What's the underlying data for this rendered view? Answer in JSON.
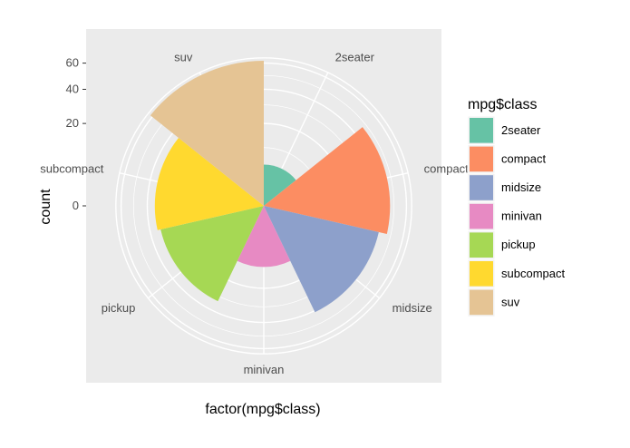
{
  "chart_data": {
    "type": "bar",
    "coord": "polar",
    "categories": [
      "2seater",
      "compact",
      "midsize",
      "minivan",
      "pickup",
      "subcompact",
      "suv"
    ],
    "values": [
      5,
      47,
      41,
      11,
      33,
      35,
      62
    ],
    "colors": [
      "#66c2a5",
      "#fc8d62",
      "#8da0cb",
      "#e78ac3",
      "#a6d854",
      "#ffd92f",
      "#e5c494"
    ],
    "xlabel": "factor(mpg$class)",
    "ylabel": "count",
    "y_ticks": [
      0,
      20,
      40,
      60
    ],
    "y_tick_labels": [
      "0",
      "20",
      "40",
      "60"
    ],
    "ylim": [
      0,
      62
    ],
    "legend": {
      "title": "mpg$class",
      "position": "right"
    },
    "grid": true
  }
}
